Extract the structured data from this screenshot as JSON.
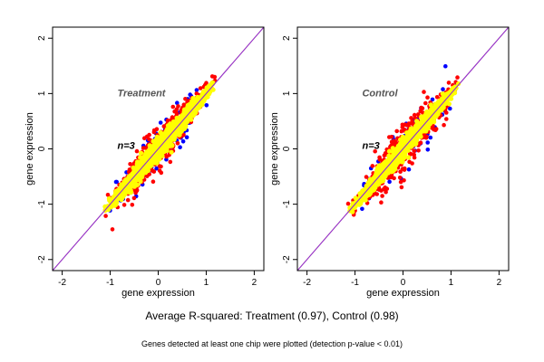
{
  "caption": {
    "main": "Average R-squared: Treatment (0.97), Control (0.98)",
    "note": "Genes detected at least one chip were plotted (detection p-value < 0.01)"
  },
  "chart_data": [
    {
      "type": "scatter",
      "annotation": "Treatment",
      "count_label": "n=3",
      "xlabel": "gene expression",
      "ylabel": "gene expression",
      "xlim": [
        -2.2,
        2.2
      ],
      "ylim": [
        -2.2,
        2.2
      ],
      "xticks": [
        -2,
        -1,
        0,
        1,
        2
      ],
      "yticks": [
        -2,
        -1,
        0,
        1,
        2
      ],
      "grid": false,
      "diagonal_lines": [
        {
          "slope": 1,
          "intercept": 0,
          "color": "#ff8c00"
        },
        {
          "slope": 1,
          "intercept": 0,
          "color": "#8a2be2"
        }
      ],
      "point_groups": [
        {
          "color": "#0000ff",
          "spread": 0.32,
          "count": 80
        },
        {
          "color": "#ff0000",
          "spread": 0.22,
          "count": 420
        },
        {
          "color": "#ffff00",
          "spread": 0.1,
          "count": 1300
        }
      ],
      "x_range": [
        -1.15,
        1.2
      ]
    },
    {
      "type": "scatter",
      "annotation": "Control",
      "count_label": "n=3",
      "xlabel": "gene expression",
      "ylabel": "gene expression",
      "xlim": [
        -2.2,
        2.2
      ],
      "ylim": [
        -2.2,
        2.2
      ],
      "xticks": [
        -2,
        -1,
        0,
        1,
        2
      ],
      "yticks": [
        -2,
        -1,
        0,
        1,
        2
      ],
      "grid": false,
      "diagonal_lines": [
        {
          "slope": 1,
          "intercept": 0,
          "color": "#ff8c00"
        },
        {
          "slope": 1,
          "intercept": 0,
          "color": "#8a2be2"
        }
      ],
      "point_groups": [
        {
          "color": "#0000ff",
          "spread": 0.3,
          "count": 70
        },
        {
          "color": "#ff0000",
          "spread": 0.24,
          "count": 420
        },
        {
          "color": "#ffff00",
          "spread": 0.09,
          "count": 1300
        }
      ],
      "x_range": [
        -1.15,
        1.2
      ]
    }
  ]
}
